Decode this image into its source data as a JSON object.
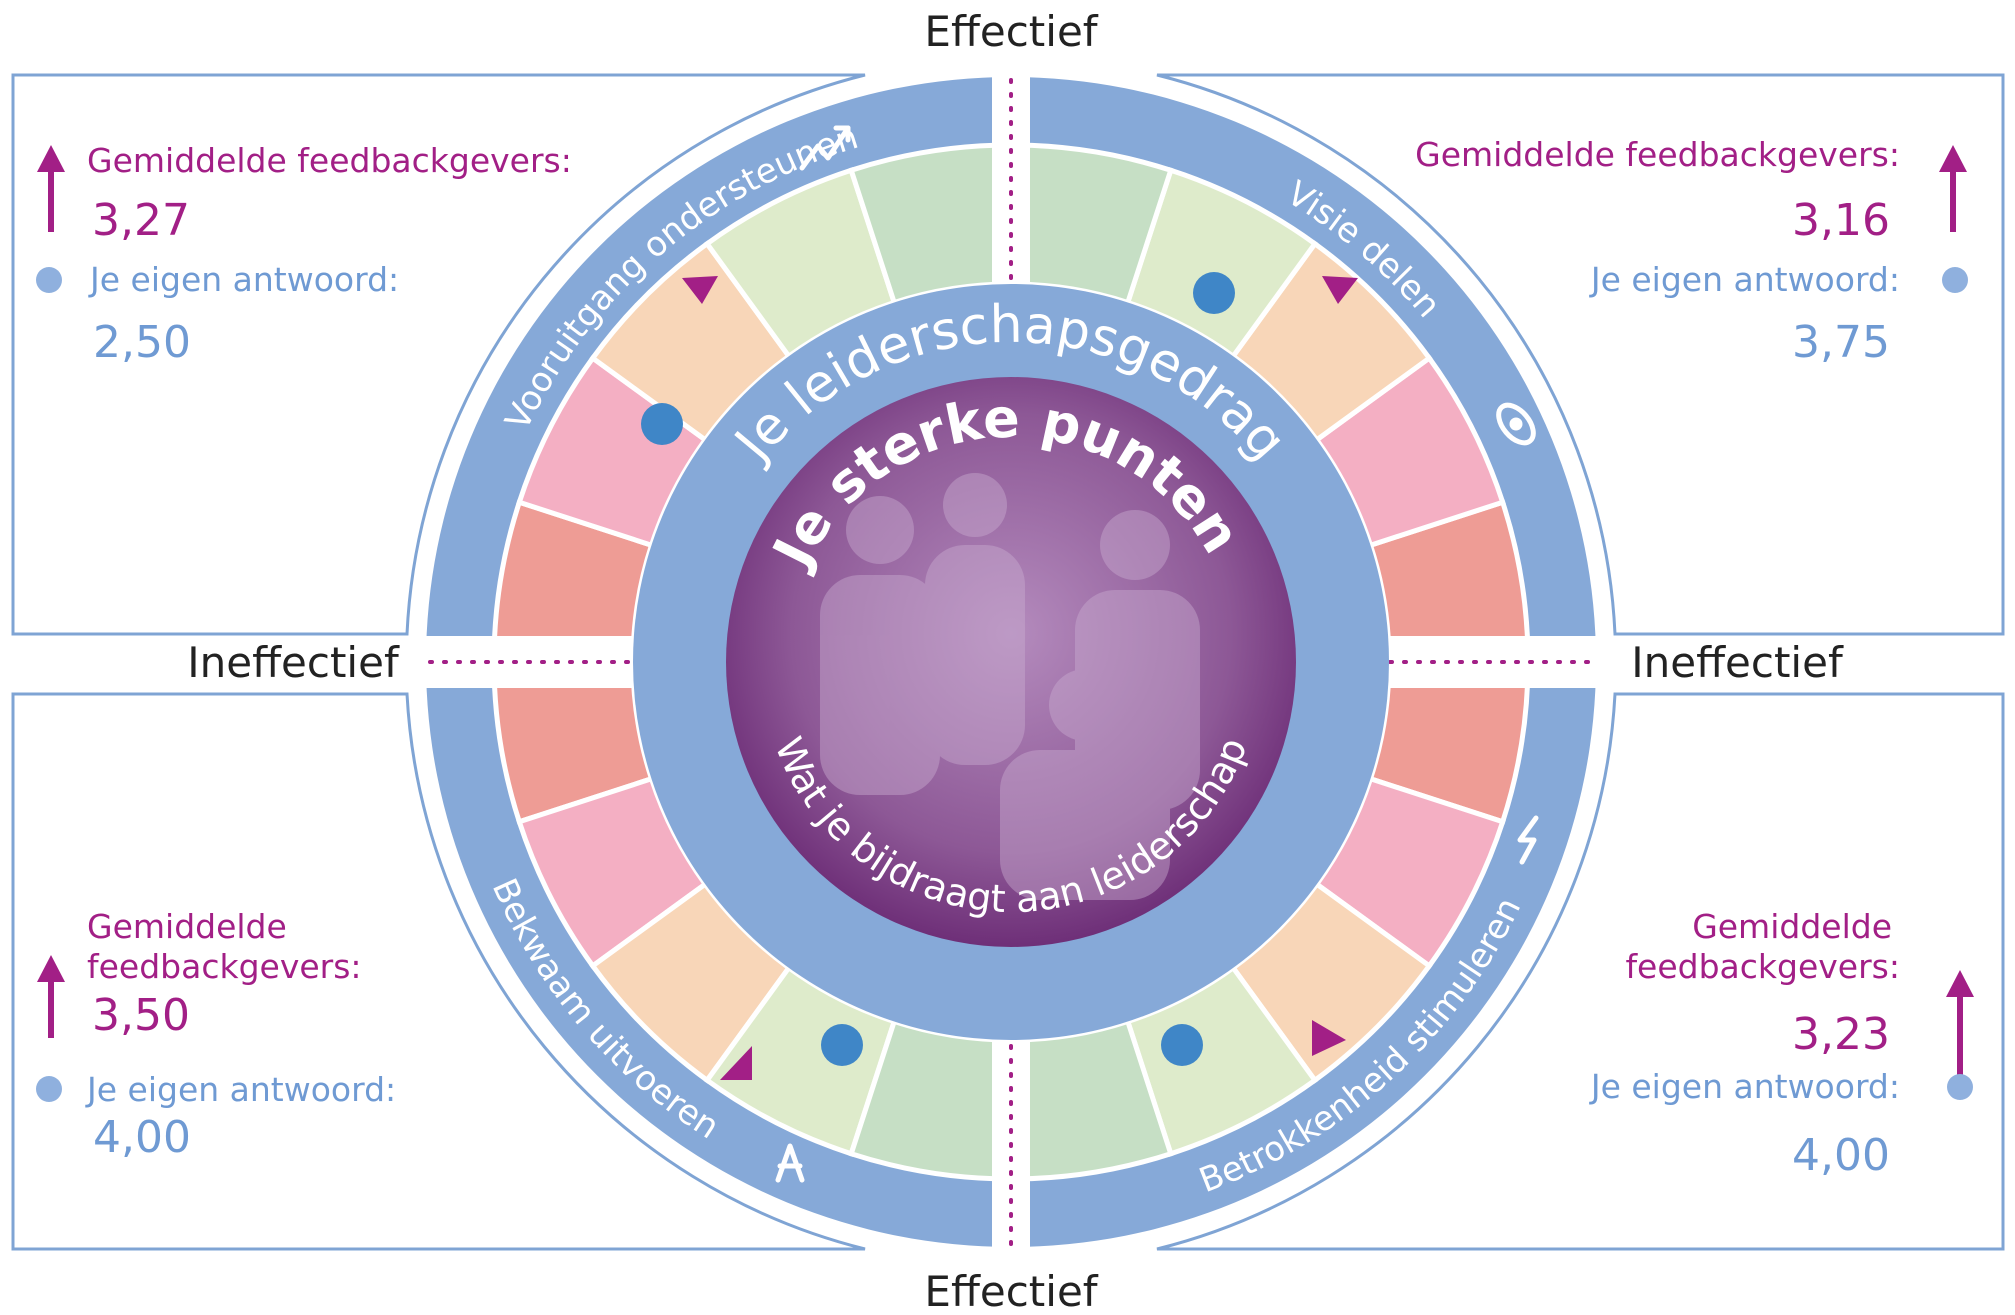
{
  "axis_labels": {
    "top": "Effectief",
    "bottom": "Effectief",
    "left": "Ineffectief",
    "right": "Ineffectief"
  },
  "center": {
    "title": "Je sterke punten",
    "subtitle": "Wat je bijdraagt aan leiderschap",
    "ring_label": "Je leiderschapsgedrag"
  },
  "quadrants": [
    {
      "name": "Vooruitgang ondersteunen",
      "avg_label": [
        "Gemiddelde feedbackgevers:"
      ],
      "avg_value": "3,27",
      "own_label": "Je eigen antwoord:",
      "own_value": "2,50"
    },
    {
      "name": "Visie delen",
      "avg_label": [
        "Gemiddelde feedbackgevers:"
      ],
      "avg_value": "3,16",
      "own_label": "Je eigen antwoord:",
      "own_value": "3,75"
    },
    {
      "name": "Bekwaam uitvoeren",
      "avg_label": [
        "Gemiddelde",
        "feedbackgevers:"
      ],
      "avg_value": "3,50",
      "own_label": "Je eigen antwoord:",
      "own_value": "4,00"
    },
    {
      "name": "Betrokkenheid stimuleren",
      "avg_label": [
        "Gemiddelde",
        "feedbackgevers:"
      ],
      "avg_value": "3,23",
      "own_label": "Je eigen antwoord:",
      "own_value": "4,00"
    }
  ]
}
